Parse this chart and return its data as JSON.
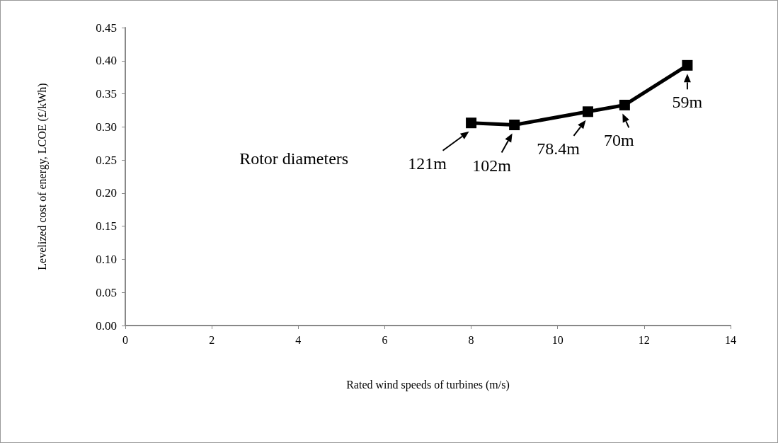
{
  "chart_data": {
    "type": "line",
    "xlabel": "Rated wind speeds of turbines (m/s)",
    "ylabel": "Levelized cost of energy, LCOE (£/kWh)",
    "x": [
      8,
      9,
      10.7,
      11.55,
      13
    ],
    "series": [
      {
        "color": "#000000",
        "values": [
          0.306,
          0.303,
          0.323,
          0.333,
          0.393
        ]
      }
    ],
    "xlim": [
      0,
      14
    ],
    "xticks": [
      0,
      2,
      4,
      6,
      8,
      10,
      12,
      14
    ],
    "ylim": [
      0,
      0.45
    ],
    "yticks": [
      {
        "value": 0,
        "label": "0.00"
      },
      0.05,
      {
        "value": 0.1,
        "label": "0.10"
      },
      0.15,
      {
        "value": 0.2,
        "label": "0.20"
      },
      0.25,
      {
        "value": 0.3,
        "label": "0.30"
      },
      0.35,
      {
        "value": 0.4,
        "label": "0.40"
      },
      0.45
    ],
    "marker": "square",
    "line_style": "solid",
    "grid": false,
    "annotations": [
      "Rotor diameters",
      {
        "text": "121m",
        "x": 8,
        "y": 0.306
      },
      {
        "text": "102m",
        "x": 9,
        "y": 0.303
      },
      {
        "text": "78.4m",
        "x": 10.7,
        "y": 0.323
      },
      {
        "text": "70m",
        "x": 11.55,
        "y": 0.333
      },
      {
        "text": "59m",
        "x": 13,
        "y": 0.393
      }
    ]
  }
}
